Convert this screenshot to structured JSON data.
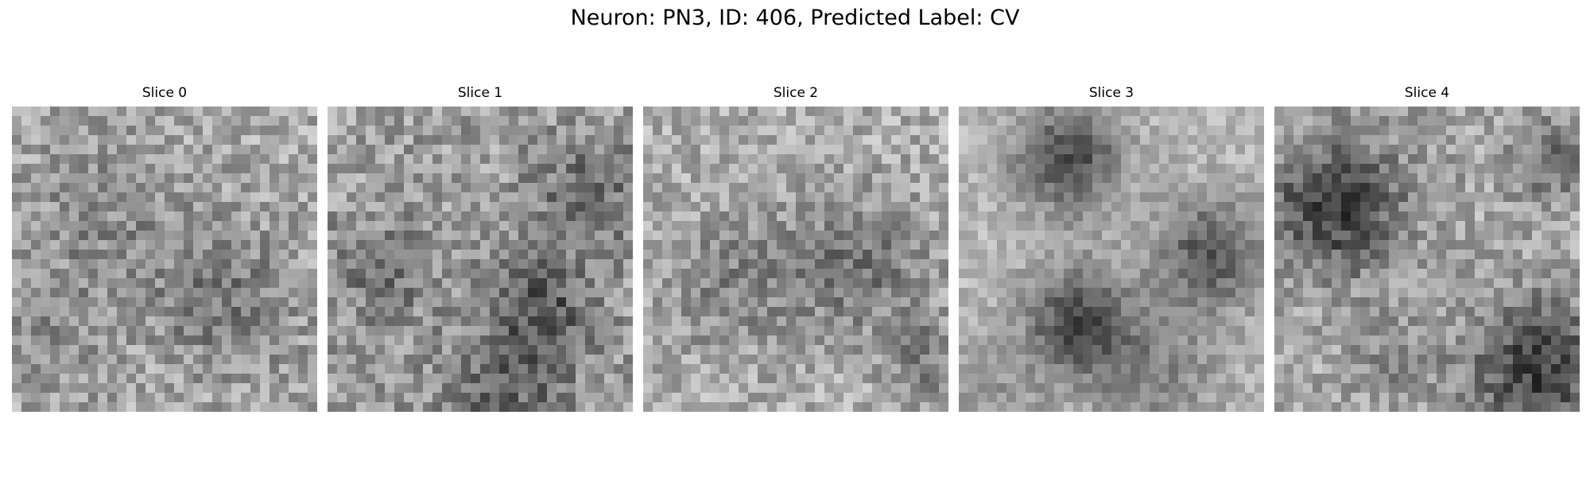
{
  "figure": {
    "suptitle": "Neuron: PN3, ID: 406, Predicted Label: CV"
  },
  "panels": [
    {
      "title": "Slice 0"
    },
    {
      "title": "Slice 1"
    },
    {
      "title": "Slice 2"
    },
    {
      "title": "Slice 3"
    },
    {
      "title": "Slice 4"
    }
  ],
  "style": {
    "colormap": "grayscale",
    "axes_visible": false,
    "grid_size": 32
  }
}
